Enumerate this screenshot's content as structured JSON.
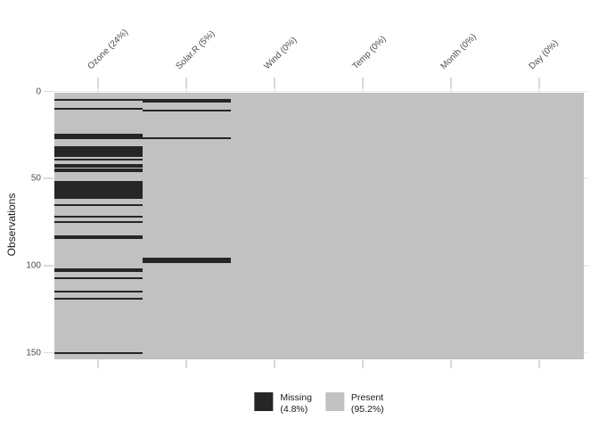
{
  "chart_data": {
    "type": "heatmap",
    "title": "",
    "ylabel": "Observations",
    "xlabel": "",
    "n_observations": 153,
    "y_ticks": [
      "0",
      "50",
      "100",
      "150"
    ],
    "y_tick_values": [
      0,
      50,
      100,
      150
    ],
    "legend_position": "bottom",
    "colors": {
      "missing": "#262626",
      "present": "#c1c1c1"
    },
    "columns": [
      {
        "label": "Ozone (24%)",
        "variable": "Ozone",
        "pct_missing": 24,
        "missing_rows": [
          5,
          10,
          25,
          26,
          27,
          32,
          33,
          34,
          35,
          36,
          37,
          39,
          42,
          43,
          45,
          46,
          52,
          53,
          54,
          55,
          56,
          57,
          58,
          59,
          60,
          61,
          65,
          72,
          75,
          83,
          84,
          102,
          103,
          107,
          115,
          119,
          150
        ]
      },
      {
        "label": "Solar.R (5%)",
        "variable": "Solar.R",
        "pct_missing": 5,
        "missing_rows": [
          5,
          6,
          11,
          27,
          96,
          97,
          98
        ]
      },
      {
        "label": "Wind (0%)",
        "variable": "Wind",
        "pct_missing": 0,
        "missing_rows": []
      },
      {
        "label": "Temp (0%)",
        "variable": "Temp",
        "pct_missing": 0,
        "missing_rows": []
      },
      {
        "label": "Month (0%)",
        "variable": "Month",
        "pct_missing": 0,
        "missing_rows": []
      },
      {
        "label": "Day (0%)",
        "variable": "Day",
        "pct_missing": 0,
        "missing_rows": []
      }
    ],
    "legend": [
      {
        "label": "Missing",
        "pct": "(4.8%)",
        "color": "#262626"
      },
      {
        "label": "Present",
        "pct": "(95.2%)",
        "color": "#c1c1c1"
      }
    ]
  }
}
